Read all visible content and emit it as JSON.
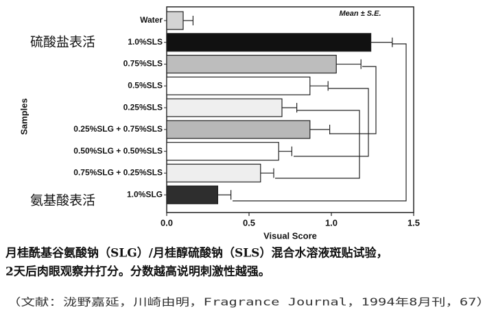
{
  "chart_data": {
    "type": "bar",
    "orientation": "horizontal",
    "categories": [
      "Water",
      "1.0%SLS",
      "0.75%SLS",
      "0.5%SLS",
      "0.25%SLS",
      "0.25%SLG + 0.75%SLS",
      "0.50%SLG + 0.50%SLS",
      "0.75%SLG + 0.25%SLS",
      "1.0%SLG"
    ],
    "values": [
      0.1,
      1.24,
      1.03,
      0.87,
      0.7,
      0.87,
      0.68,
      0.57,
      0.31
    ],
    "errors": [
      0.06,
      0.13,
      0.15,
      0.11,
      0.09,
      0.12,
      0.08,
      0.08,
      0.08
    ],
    "colors": [
      "#d4d4d4",
      "#111111",
      "#bdbdbd",
      "#ffffff",
      "#efefef",
      "#b8b8b8",
      "#ffffff",
      "#eeeeee",
      "#2e2e2e"
    ],
    "xlabel": "Visual Score",
    "ylabel": "Samples",
    "note": "Mean ± S.E.",
    "xlim": [
      0,
      1.5
    ],
    "xticks": [
      {
        "value": 0,
        "label": "0.0"
      },
      0.5,
      {
        "value": 1,
        "label": "1.0"
      },
      {
        "value": 1.5,
        "label": "1.5"
      }
    ],
    "annotations": [
      {
        "text": "硫酸盐表活",
        "color": "#3a8fc8"
      },
      {
        "text": "氨基酸表活",
        "color": "#d9604f"
      }
    ]
  },
  "caption": {
    "lines": [
      "月桂酰基谷氨酸钠（SLG）/月桂醇硫酸钠（SLS）混合水溶液斑贴试验，",
      "2天后肉眼观察并打分。分数越高说明刺激性越强。"
    ],
    "citation": "（文献：泷野嘉延，川崎由明，Fragrance Journal，1994年8月刊，67）"
  }
}
